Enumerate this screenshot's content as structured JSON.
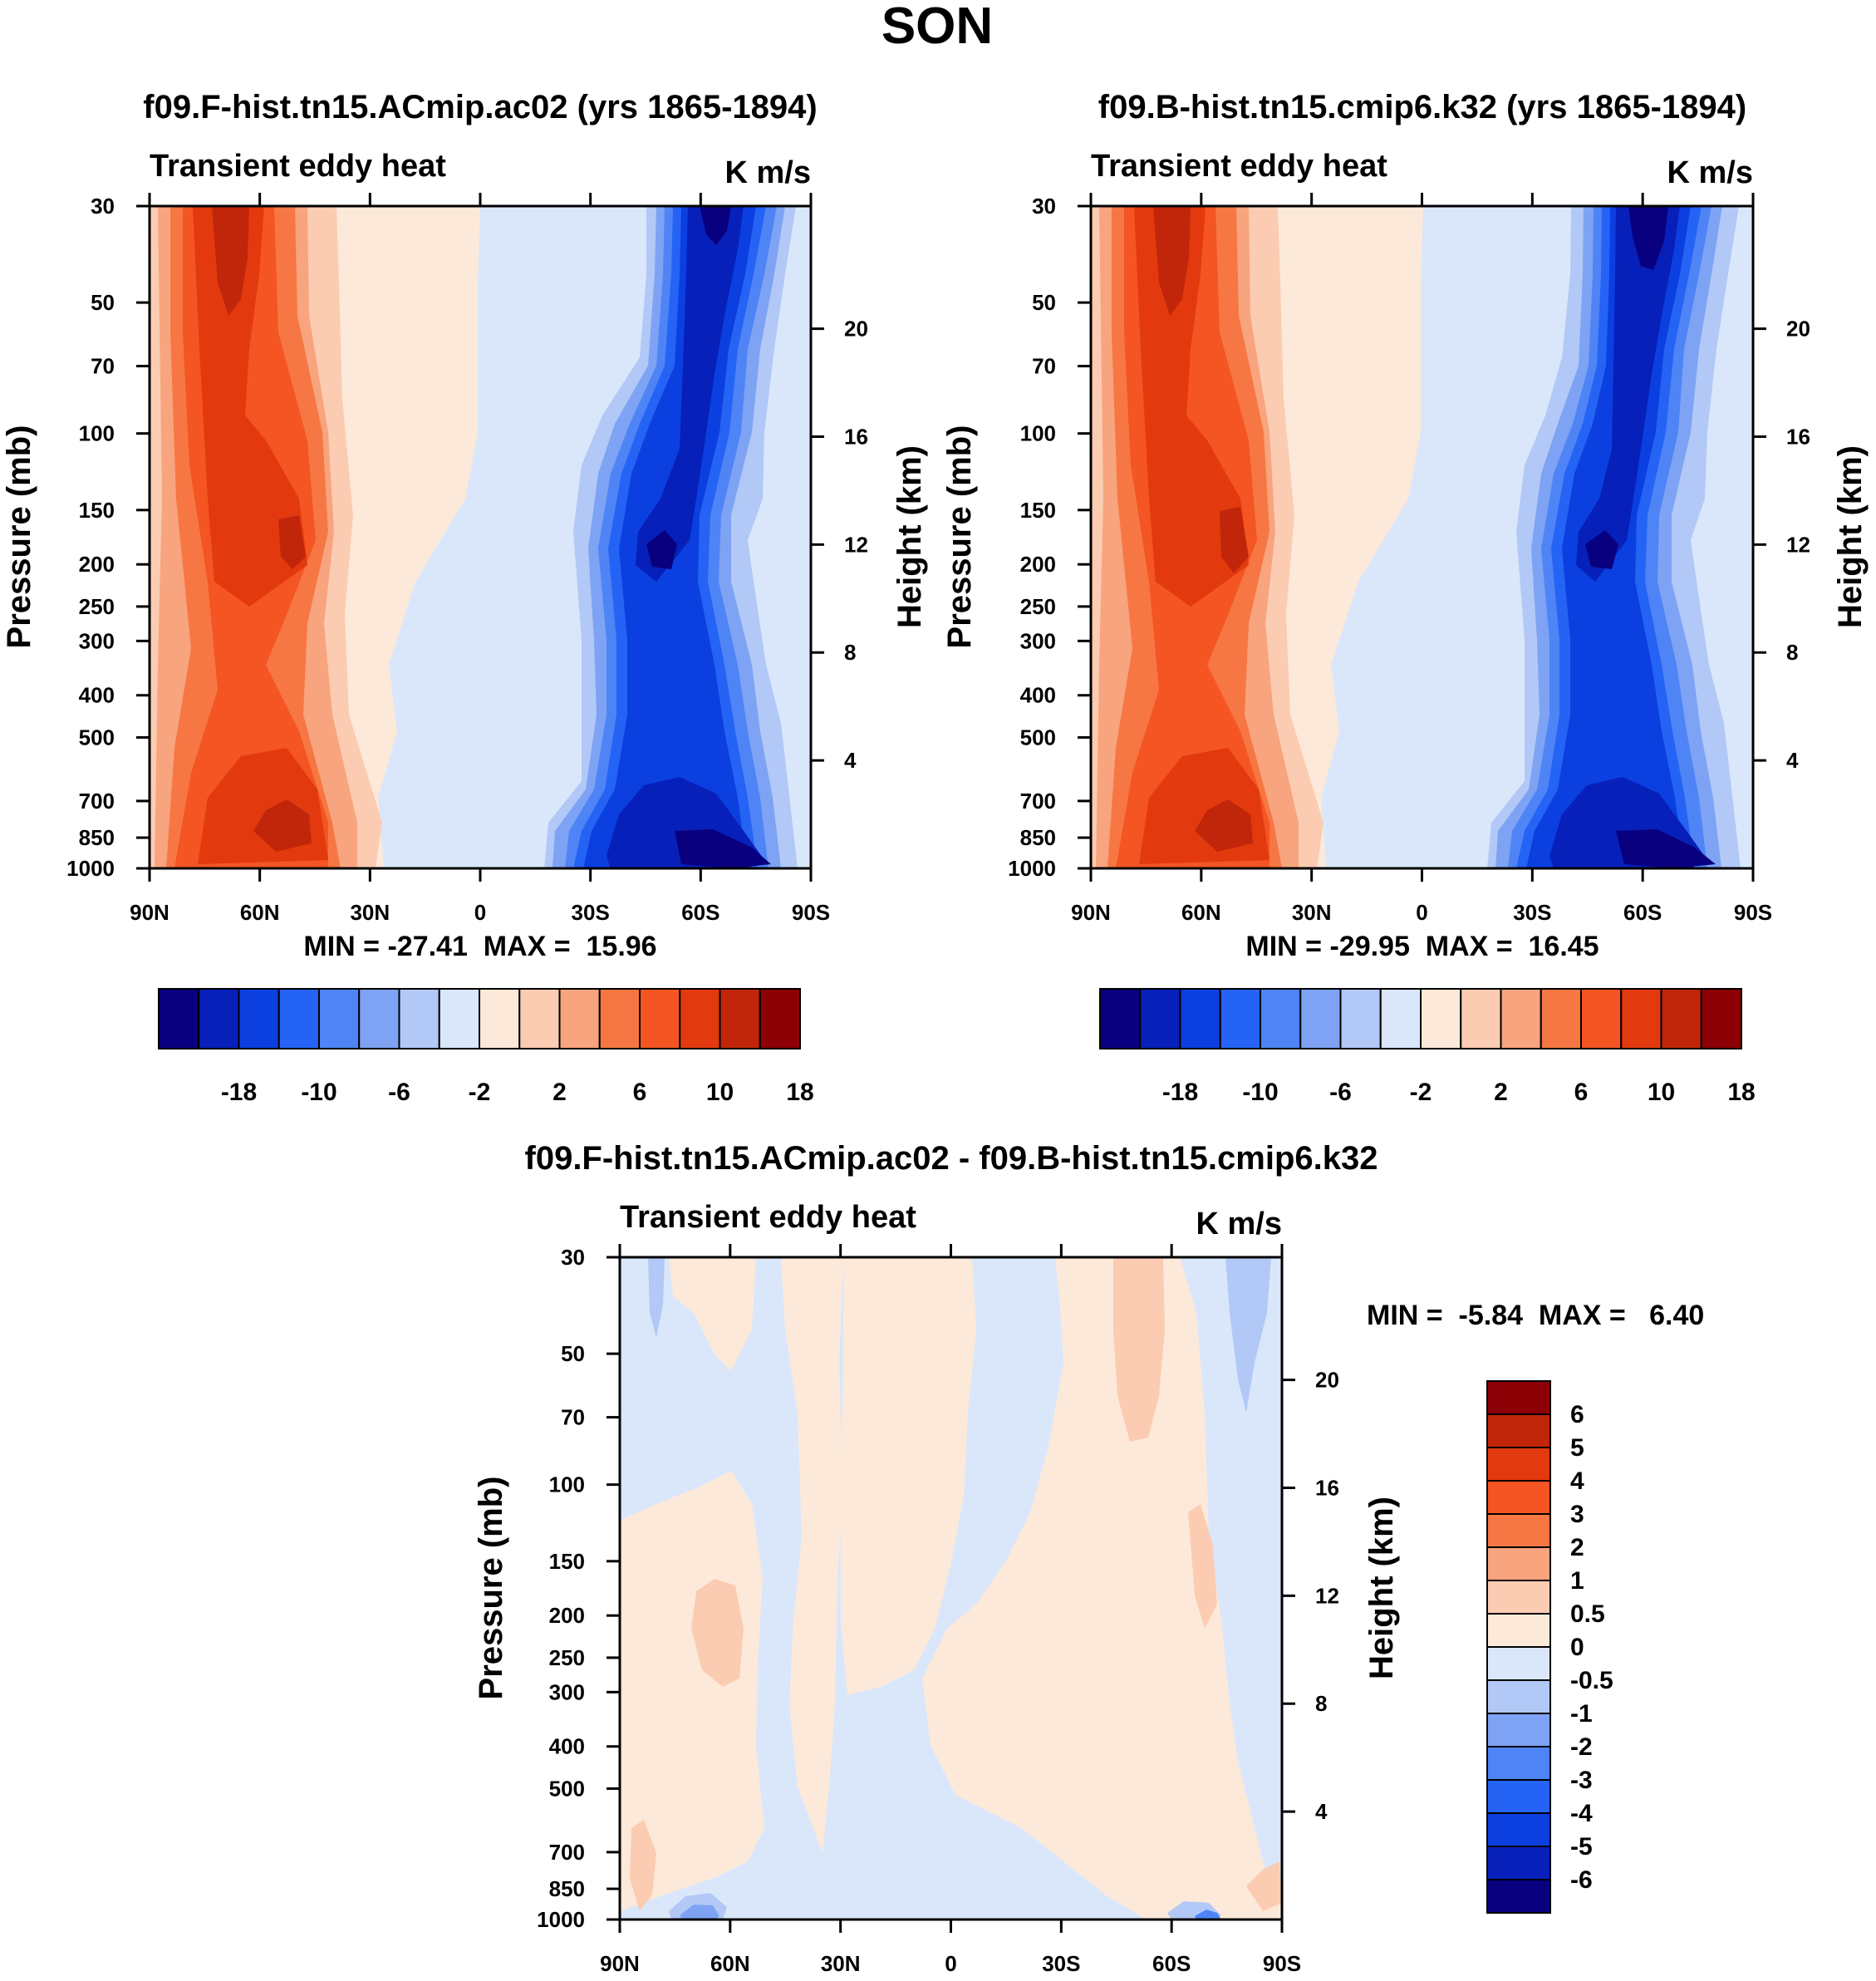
{
  "figure": {
    "title": "SON"
  },
  "chart_data": [
    {
      "type": "heatmap",
      "id": "left",
      "title": "f09.F-hist.tn15.ACmip.ac02 (yrs 1865-1894)",
      "subtitle_left": "Transient eddy heat",
      "subtitle_right": "K m/s",
      "ylabel": "Pressure (mb)",
      "ylabel_right": "Height (km)",
      "xlabels": [
        "90N",
        "60N",
        "30N",
        "0",
        "30S",
        "60S",
        "90S"
      ],
      "xlim": [
        90,
        -90
      ],
      "yticks": [
        30,
        50,
        70,
        100,
        150,
        200,
        250,
        300,
        400,
        500,
        700,
        850,
        1000
      ],
      "ylim": [
        30,
        1000
      ],
      "height_ticks": [
        4,
        8,
        12,
        16,
        20
      ],
      "stats": "MIN = -27.41  MAX =  15.96",
      "colorbar_labels": [
        "-18",
        "-10",
        "-6",
        "-2",
        "2",
        "6",
        "10",
        "18"
      ],
      "contour_levels": [
        -22,
        -18,
        -14,
        -10,
        -8,
        -6,
        -4,
        -2,
        0,
        2,
        4,
        6,
        8,
        10,
        14,
        18,
        22
      ],
      "extrema": {
        "min": -27.41,
        "max": 15.96
      }
    },
    {
      "type": "heatmap",
      "id": "right",
      "title": "f09.B-hist.tn15.cmip6.k32 (yrs 1865-1894)",
      "subtitle_left": "Transient eddy heat",
      "subtitle_right": "K m/s",
      "ylabel": "Pressure (mb)",
      "ylabel_right": "Height (km)",
      "xlabels": [
        "90N",
        "60N",
        "30N",
        "0",
        "30S",
        "60S",
        "90S"
      ],
      "xlim": [
        90,
        -90
      ],
      "yticks": [
        30,
        50,
        70,
        100,
        150,
        200,
        250,
        300,
        400,
        500,
        700,
        850,
        1000
      ],
      "ylim": [
        30,
        1000
      ],
      "height_ticks": [
        4,
        8,
        12,
        16,
        20
      ],
      "stats": "MIN = -29.95  MAX =  16.45",
      "colorbar_labels": [
        "-18",
        "-10",
        "-6",
        "-2",
        "2",
        "6",
        "10",
        "18"
      ],
      "contour_levels": [
        -22,
        -18,
        -14,
        -10,
        -8,
        -6,
        -4,
        -2,
        0,
        2,
        4,
        6,
        8,
        10,
        14,
        18,
        22
      ],
      "extrema": {
        "min": -29.95,
        "max": 16.45
      }
    },
    {
      "type": "heatmap",
      "id": "diff",
      "title": "f09.F-hist.tn15.ACmip.ac02 - f09.B-hist.tn15.cmip6.k32",
      "subtitle_left": "Transient eddy heat",
      "subtitle_right": "K m/s",
      "ylabel": "Pressure (mb)",
      "ylabel_right": "Height (km)",
      "xlabels": [
        "90N",
        "60N",
        "30N",
        "0",
        "30S",
        "60S",
        "90S"
      ],
      "xlim": [
        90,
        -90
      ],
      "yticks": [
        30,
        50,
        70,
        100,
        150,
        200,
        250,
        300,
        400,
        500,
        700,
        850,
        1000
      ],
      "ylim": [
        30,
        1000
      ],
      "height_ticks": [
        4,
        8,
        12,
        16,
        20
      ],
      "stats": "MIN =  -5.84  MAX =   6.40",
      "colorbar_labels": [
        "6",
        "5",
        "4",
        "3",
        "2",
        "1",
        "0.5",
        "0",
        "-0.5",
        "-1",
        "-2",
        "-3",
        "-4",
        "-5",
        "-6"
      ],
      "extrema": {
        "min": -5.84,
        "max": 6.4
      }
    }
  ],
  "colors": {
    "scale": [
      "#08007f",
      "#0720b9",
      "#0b3fe0",
      "#2563f5",
      "#4e84f5",
      "#7ea3f4",
      "#b2c8f6",
      "#dae7fb",
      "#fde9d9",
      "#fbccb2",
      "#f8a47e",
      "#f67743",
      "#f45522",
      "#e23a0e",
      "#c1260a",
      "#8c0005"
    ]
  }
}
